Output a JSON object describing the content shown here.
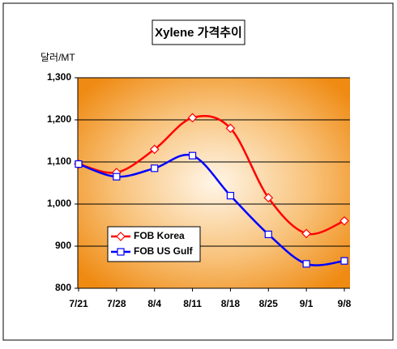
{
  "chart_data": {
    "type": "line",
    "title": "Xylene 가격추이",
    "y_axis_label": "달러/MT",
    "categories": [
      "7/21",
      "7/28",
      "8/4",
      "8/11",
      "8/18",
      "8/25",
      "9/1",
      "9/8"
    ],
    "series": [
      {
        "name": "FOB Korea",
        "color": "#ff0000",
        "marker": "diamond",
        "values": [
          1095,
          1075,
          1130,
          1205,
          1180,
          1015,
          930,
          960
        ]
      },
      {
        "name": "FOB US Gulf",
        "color": "#0000ff",
        "marker": "square",
        "values": [
          1095,
          1065,
          1085,
          1115,
          1020,
          928,
          858,
          865
        ]
      }
    ],
    "ylim": [
      800,
      1300
    ],
    "yticks": [
      {
        "value": 800,
        "label": "800"
      },
      {
        "value": 900,
        "label": "900"
      },
      {
        "value": 1000,
        "label": "1,000"
      },
      {
        "value": 1100,
        "label": "1,100"
      },
      {
        "value": 1200,
        "label": "1,200"
      },
      {
        "value": 1300,
        "label": "1,300"
      }
    ],
    "grid": true,
    "smooth": true
  }
}
